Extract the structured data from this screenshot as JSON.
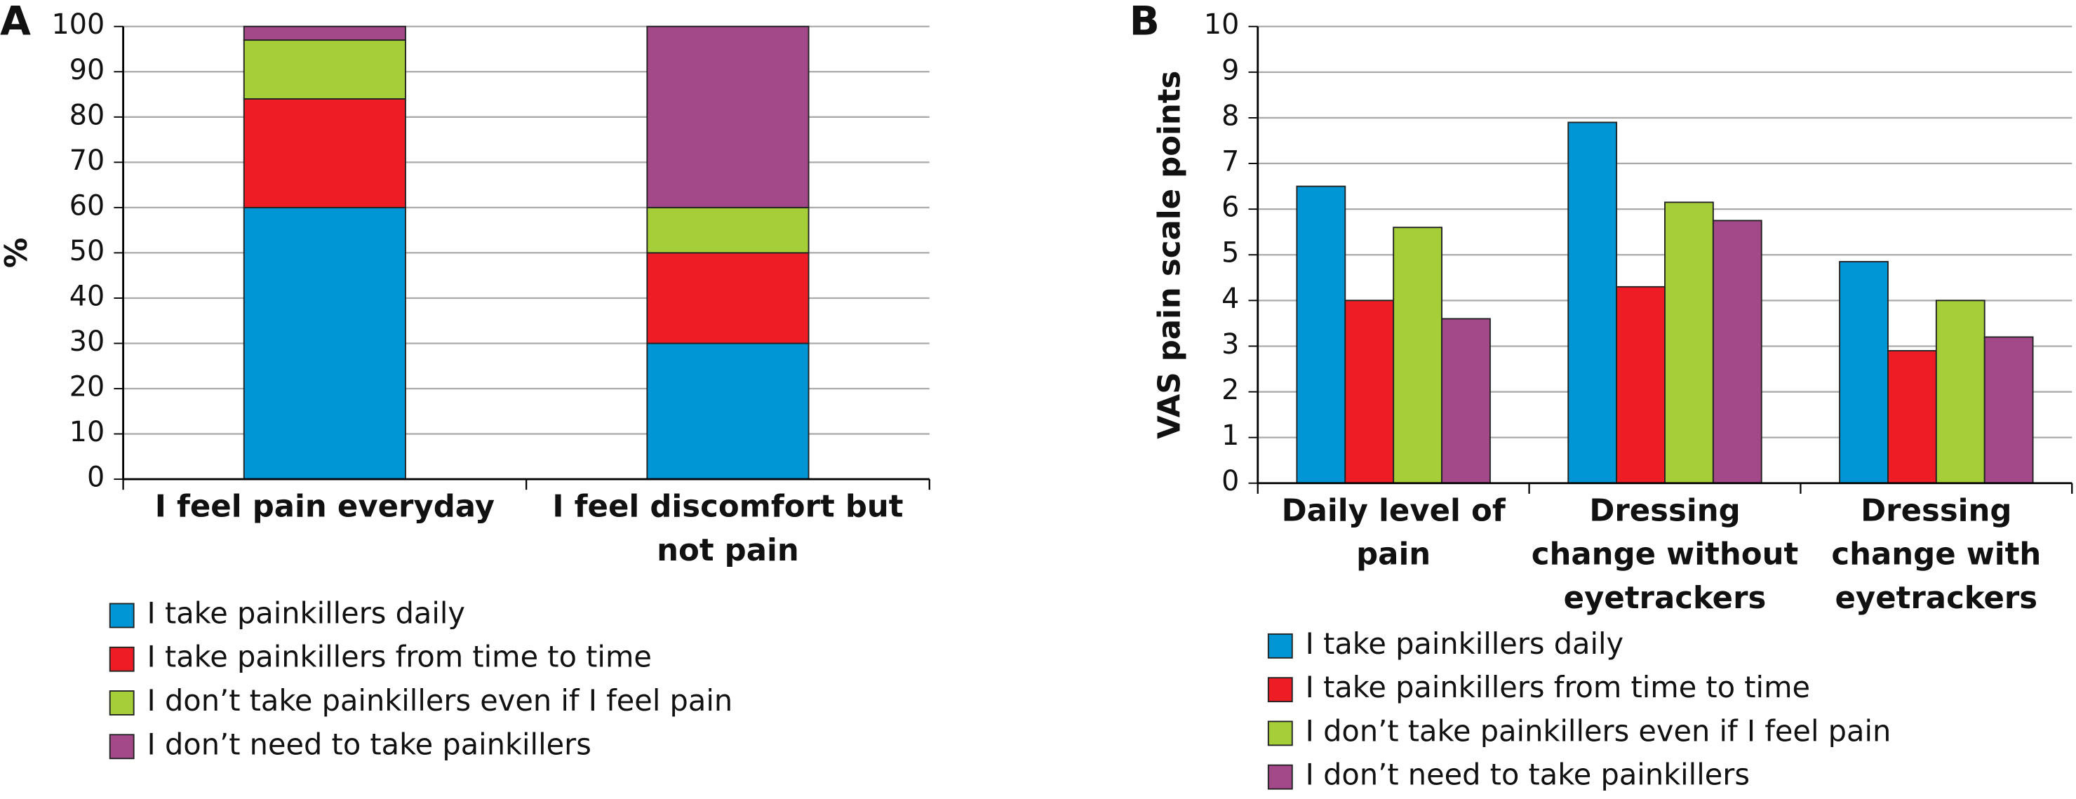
{
  "chart_data": [
    {
      "type": "bar",
      "stacked": true,
      "panel": "A",
      "y_label": "%",
      "categories": [
        "I feel pain everyday",
        "I feel discomfort but not pain"
      ],
      "series": [
        {
          "name": "I take painkillers daily",
          "color": "#0096d6",
          "values": [
            60,
            30
          ]
        },
        {
          "name": "I take painkillers from time to time",
          "color": "#ee1c25",
          "values": [
            24,
            20
          ]
        },
        {
          "name": "I don’t take painkillers even if I feel pain",
          "color": "#a6ce39",
          "values": [
            13,
            10
          ]
        },
        {
          "name": "I don’t need to take painkillers",
          "color": "#a3498a",
          "values": [
            3,
            40
          ]
        }
      ],
      "ylim": [
        0,
        100
      ],
      "yticks": [
        0,
        10,
        20,
        30,
        40,
        50,
        60,
        70,
        80,
        90,
        100
      ],
      "grid": true
    },
    {
      "type": "bar",
      "stacked": false,
      "panel": "B",
      "y_label": "VAS pain scale points",
      "categories": [
        "Daily level of pain",
        "Dressing change without eyetrackers",
        "Dressing change with eyetrackers"
      ],
      "series": [
        {
          "name": "I take painkillers daily",
          "color": "#0096d6",
          "values": [
            6.5,
            7.9,
            4.85
          ]
        },
        {
          "name": "I take painkillers from time to time",
          "color": "#ee1c25",
          "values": [
            4.0,
            4.3,
            2.9
          ]
        },
        {
          "name": "I don’t take painkillers even if I feel pain",
          "color": "#a6ce39",
          "values": [
            5.6,
            6.15,
            4.0
          ]
        },
        {
          "name": "I don’t need to take painkillers",
          "color": "#a3498a",
          "values": [
            3.6,
            5.75,
            3.2
          ]
        }
      ],
      "ylim": [
        0,
        10
      ],
      "yticks": [
        0,
        1,
        2,
        3,
        4,
        5,
        6,
        7,
        8,
        9,
        10
      ],
      "grid": true
    }
  ]
}
